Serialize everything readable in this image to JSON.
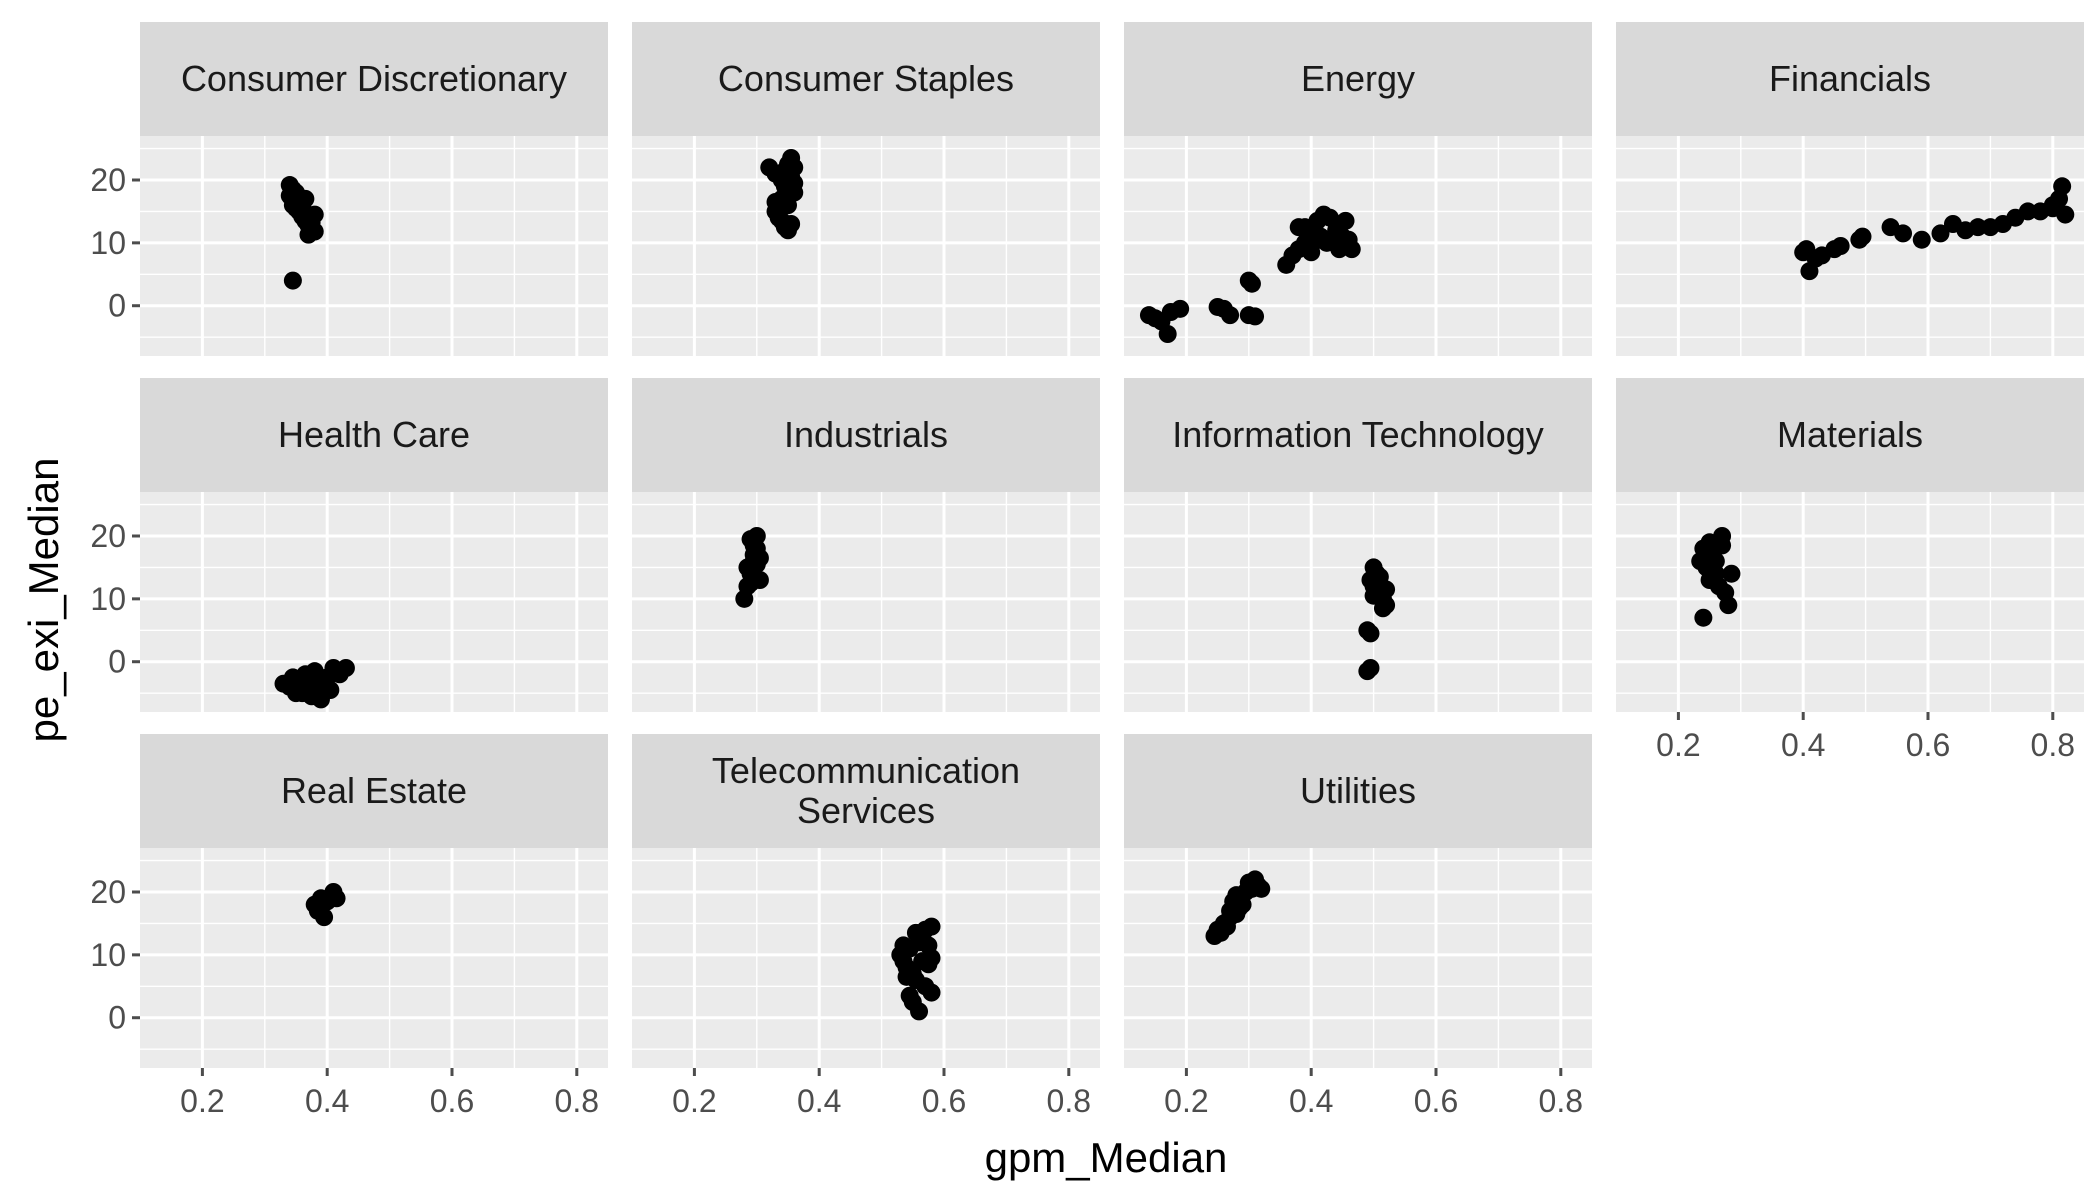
{
  "chart_data": {
    "type": "scatter",
    "facet_layout": "wrap 4 columns",
    "xlabel": "gpm_Median",
    "ylabel": "pe_exi_Median",
    "xlim": [
      0.1,
      0.85
    ],
    "ylim": [
      -8,
      27
    ],
    "x_ticks": [
      0.2,
      0.4,
      0.6,
      0.8
    ],
    "x_tick_labels": [
      "0.2",
      "0.4",
      "0.6",
      "0.8"
    ],
    "y_ticks": [
      0,
      10,
      20
    ],
    "y_tick_labels": [
      "0",
      "10",
      "20"
    ],
    "grid": true,
    "point_color": "#000000",
    "panel_background": "#ebebeb",
    "strip_background": "#d9d9d9",
    "facets": [
      {
        "name": "Consumer Discretionary",
        "points": [
          [
            0.34,
            19.2
          ],
          [
            0.345,
            18.5
          ],
          [
            0.35,
            18.0
          ],
          [
            0.355,
            17.2
          ],
          [
            0.36,
            16.8
          ],
          [
            0.34,
            17.5
          ],
          [
            0.345,
            16.0
          ],
          [
            0.35,
            15.5
          ],
          [
            0.355,
            15.0
          ],
          [
            0.36,
            14.2
          ],
          [
            0.365,
            13.5
          ],
          [
            0.37,
            12.8
          ],
          [
            0.375,
            12.0
          ],
          [
            0.37,
            11.3
          ],
          [
            0.38,
            11.8
          ],
          [
            0.375,
            13.2
          ],
          [
            0.38,
            14.5
          ],
          [
            0.36,
            15.8
          ],
          [
            0.35,
            16.5
          ],
          [
            0.365,
            17.0
          ],
          [
            0.345,
            4.0
          ]
        ]
      },
      {
        "name": "Consumer Staples",
        "points": [
          [
            0.32,
            22.0
          ],
          [
            0.33,
            21.0
          ],
          [
            0.34,
            20.0
          ],
          [
            0.345,
            19.0
          ],
          [
            0.35,
            22.5
          ],
          [
            0.355,
            23.5
          ],
          [
            0.36,
            22.0
          ],
          [
            0.33,
            15.0
          ],
          [
            0.335,
            14.0
          ],
          [
            0.34,
            13.5
          ],
          [
            0.345,
            12.5
          ],
          [
            0.35,
            12.0
          ],
          [
            0.355,
            13.0
          ],
          [
            0.36,
            18.0
          ],
          [
            0.34,
            17.0
          ],
          [
            0.35,
            16.0
          ],
          [
            0.355,
            20.5
          ],
          [
            0.36,
            19.5
          ],
          [
            0.33,
            16.5
          ],
          [
            0.345,
            21.5
          ]
        ]
      },
      {
        "name": "Energy",
        "points": [
          [
            0.14,
            -1.5
          ],
          [
            0.15,
            -2.0
          ],
          [
            0.16,
            -2.5
          ],
          [
            0.17,
            -4.5
          ],
          [
            0.175,
            -1.0
          ],
          [
            0.19,
            -0.5
          ],
          [
            0.25,
            -0.2
          ],
          [
            0.26,
            -0.5
          ],
          [
            0.27,
            -1.5
          ],
          [
            0.3,
            4.0
          ],
          [
            0.305,
            3.5
          ],
          [
            0.3,
            -1.5
          ],
          [
            0.31,
            -1.7
          ],
          [
            0.36,
            6.5
          ],
          [
            0.37,
            8.0
          ],
          [
            0.38,
            9.0
          ],
          [
            0.38,
            12.5
          ],
          [
            0.39,
            10.0
          ],
          [
            0.395,
            11.0
          ],
          [
            0.4,
            9.5
          ],
          [
            0.405,
            12.0
          ],
          [
            0.41,
            13.5
          ],
          [
            0.415,
            11.0
          ],
          [
            0.42,
            14.5
          ],
          [
            0.425,
            10.0
          ],
          [
            0.43,
            14.0
          ],
          [
            0.44,
            12.0
          ],
          [
            0.445,
            9.0
          ],
          [
            0.45,
            11.0
          ],
          [
            0.455,
            13.5
          ],
          [
            0.46,
            10.5
          ],
          [
            0.465,
            9.0
          ],
          [
            0.39,
            12.5
          ],
          [
            0.4,
            8.5
          ]
        ]
      },
      {
        "name": "Financials",
        "points": [
          [
            0.4,
            8.5
          ],
          [
            0.405,
            9.0
          ],
          [
            0.41,
            5.5
          ],
          [
            0.42,
            7.5
          ],
          [
            0.43,
            8.0
          ],
          [
            0.45,
            9.0
          ],
          [
            0.46,
            9.5
          ],
          [
            0.49,
            10.5
          ],
          [
            0.495,
            11.0
          ],
          [
            0.54,
            12.5
          ],
          [
            0.56,
            11.5
          ],
          [
            0.59,
            10.5
          ],
          [
            0.62,
            11.5
          ],
          [
            0.64,
            13.0
          ],
          [
            0.66,
            12.0
          ],
          [
            0.68,
            12.5
          ],
          [
            0.7,
            12.5
          ],
          [
            0.72,
            13.0
          ],
          [
            0.74,
            14.0
          ],
          [
            0.76,
            15.0
          ],
          [
            0.78,
            15.0
          ],
          [
            0.8,
            15.5
          ],
          [
            0.81,
            17.0
          ],
          [
            0.815,
            19.0
          ],
          [
            0.82,
            14.5
          ],
          [
            0.8,
            16.0
          ]
        ]
      },
      {
        "name": "Health Care",
        "points": [
          [
            0.33,
            -3.5
          ],
          [
            0.34,
            -4.0
          ],
          [
            0.345,
            -2.5
          ],
          [
            0.35,
            -5.0
          ],
          [
            0.355,
            -3.0
          ],
          [
            0.36,
            -4.5
          ],
          [
            0.365,
            -2.0
          ],
          [
            0.37,
            -3.5
          ],
          [
            0.375,
            -5.5
          ],
          [
            0.38,
            -1.5
          ],
          [
            0.385,
            -4.0
          ],
          [
            0.39,
            -6.0
          ],
          [
            0.395,
            -3.0
          ],
          [
            0.4,
            -2.5
          ],
          [
            0.405,
            -4.5
          ],
          [
            0.41,
            -1.0
          ],
          [
            0.42,
            -2.0
          ],
          [
            0.43,
            -1.0
          ],
          [
            0.38,
            -3.0
          ],
          [
            0.36,
            -5.0
          ]
        ]
      },
      {
        "name": "Industrials",
        "points": [
          [
            0.28,
            10.0
          ],
          [
            0.285,
            12.0
          ],
          [
            0.29,
            14.0
          ],
          [
            0.295,
            16.0
          ],
          [
            0.3,
            18.0
          ],
          [
            0.29,
            19.5
          ],
          [
            0.295,
            17.0
          ],
          [
            0.3,
            15.5
          ],
          [
            0.305,
            13.0
          ],
          [
            0.3,
            20.0
          ],
          [
            0.285,
            15.0
          ],
          [
            0.29,
            12.5
          ],
          [
            0.305,
            16.5
          ],
          [
            0.295,
            18.5
          ]
        ]
      },
      {
        "name": "Information Technology",
        "points": [
          [
            0.49,
            -1.5
          ],
          [
            0.495,
            -1.0
          ],
          [
            0.49,
            5.0
          ],
          [
            0.495,
            4.5
          ],
          [
            0.5,
            15.0
          ],
          [
            0.505,
            14.0
          ],
          [
            0.495,
            13.0
          ],
          [
            0.5,
            12.0
          ],
          [
            0.51,
            11.0
          ],
          [
            0.515,
            10.0
          ],
          [
            0.52,
            9.0
          ],
          [
            0.5,
            10.5
          ],
          [
            0.505,
            12.5
          ],
          [
            0.51,
            13.5
          ],
          [
            0.52,
            11.5
          ],
          [
            0.515,
            8.5
          ]
        ]
      },
      {
        "name": "Materials",
        "points": [
          [
            0.24,
            7.0
          ],
          [
            0.235,
            16.0
          ],
          [
            0.24,
            18.0
          ],
          [
            0.245,
            15.0
          ],
          [
            0.25,
            19.0
          ],
          [
            0.255,
            17.0
          ],
          [
            0.26,
            14.0
          ],
          [
            0.265,
            12.0
          ],
          [
            0.27,
            20.0
          ],
          [
            0.275,
            11.0
          ],
          [
            0.28,
            9.0
          ],
          [
            0.285,
            14.0
          ],
          [
            0.25,
            13.0
          ],
          [
            0.26,
            16.0
          ],
          [
            0.27,
            18.5
          ],
          [
            0.245,
            17.5
          ]
        ]
      },
      {
        "name": "Real Estate",
        "points": [
          [
            0.38,
            18.0
          ],
          [
            0.385,
            17.0
          ],
          [
            0.39,
            19.0
          ],
          [
            0.395,
            16.0
          ],
          [
            0.4,
            18.5
          ],
          [
            0.41,
            20.0
          ],
          [
            0.415,
            19.0
          ]
        ]
      },
      {
        "name": "Telecommunication\nServices",
        "points": [
          [
            0.53,
            10.0
          ],
          [
            0.535,
            9.0
          ],
          [
            0.54,
            8.0
          ],
          [
            0.545,
            11.0
          ],
          [
            0.55,
            7.0
          ],
          [
            0.555,
            6.0
          ],
          [
            0.56,
            12.0
          ],
          [
            0.565,
            13.0
          ],
          [
            0.57,
            14.0
          ],
          [
            0.575,
            11.5
          ],
          [
            0.58,
            9.5
          ],
          [
            0.545,
            3.5
          ],
          [
            0.55,
            2.5
          ],
          [
            0.56,
            1.0
          ],
          [
            0.58,
            4.0
          ],
          [
            0.57,
            5.0
          ],
          [
            0.54,
            6.5
          ],
          [
            0.565,
            9.0
          ],
          [
            0.575,
            8.5
          ],
          [
            0.535,
            11.5
          ],
          [
            0.555,
            13.5
          ],
          [
            0.58,
            14.5
          ]
        ]
      },
      {
        "name": "Utilities",
        "points": [
          [
            0.245,
            13.0
          ],
          [
            0.25,
            14.0
          ],
          [
            0.255,
            13.5
          ],
          [
            0.26,
            15.0
          ],
          [
            0.265,
            14.5
          ],
          [
            0.27,
            16.0
          ],
          [
            0.275,
            18.5
          ],
          [
            0.28,
            19.5
          ],
          [
            0.285,
            17.5
          ],
          [
            0.29,
            18.0
          ],
          [
            0.295,
            20.0
          ],
          [
            0.3,
            21.5
          ],
          [
            0.305,
            20.5
          ],
          [
            0.31,
            22.0
          ],
          [
            0.315,
            21.0
          ],
          [
            0.32,
            20.5
          ],
          [
            0.27,
            17.0
          ],
          [
            0.28,
            16.5
          ]
        ]
      }
    ]
  }
}
